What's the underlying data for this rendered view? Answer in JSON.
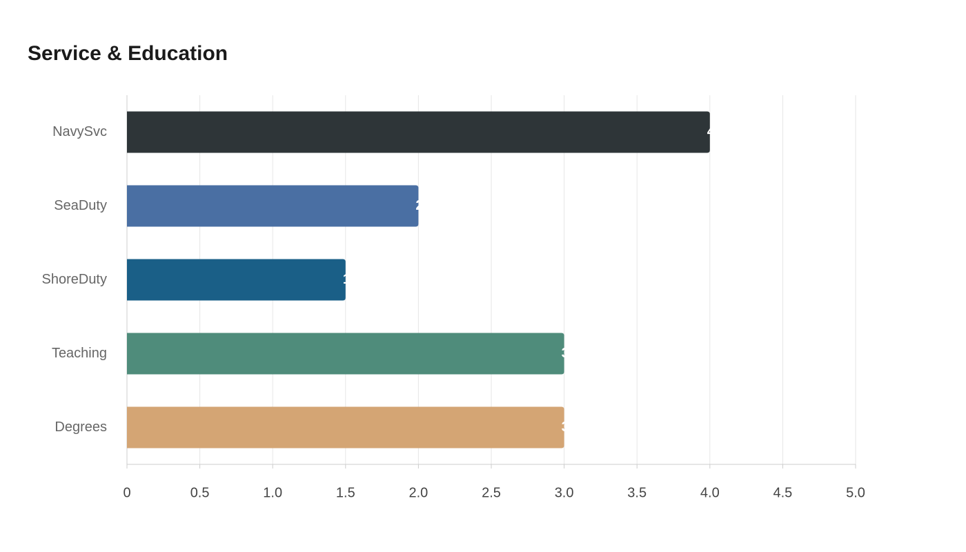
{
  "chart_data": {
    "type": "bar",
    "orientation": "horizontal",
    "title": "Service & Education",
    "categories": [
      "NavySvc",
      "SeaDuty",
      "ShoreDuty",
      "Teaching",
      "Degrees"
    ],
    "values": [
      4,
      2,
      1.5,
      3,
      3
    ],
    "colors": [
      "#2e3538",
      "#4a6fa3",
      "#1a5f87",
      "#4f8c7b",
      "#d4a574"
    ],
    "xlim": [
      0,
      5
    ],
    "xticks": [
      0,
      0.5,
      {
        "value": 1,
        "label": "1.0"
      },
      1.5,
      {
        "value": 2,
        "label": "2.0"
      },
      2.5,
      {
        "value": 3,
        "label": "3.0"
      },
      3.5,
      {
        "value": 4,
        "label": "4.0"
      },
      4.5,
      {
        "value": 5,
        "label": "5.0"
      }
    ],
    "grid": true
  }
}
